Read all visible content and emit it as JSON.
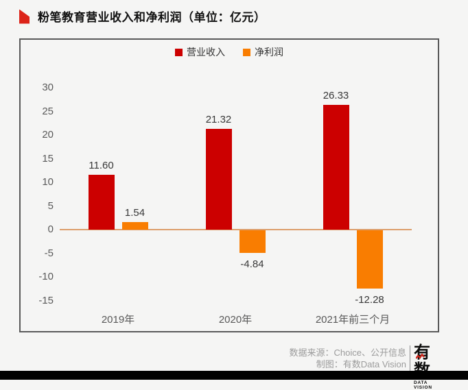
{
  "header": {
    "title": "粉笔教育营业收入和净利润（单位：亿元）"
  },
  "chart_data": {
    "type": "bar",
    "title": "粉笔教育营业收入和净利润（单位：亿元）",
    "unit": "亿元",
    "categories": [
      "2019年",
      "2020年",
      "2021年前三个月"
    ],
    "series": [
      {
        "name": "营业收入",
        "color": "#cc0000",
        "values": [
          11.6,
          21.32,
          26.33
        ]
      },
      {
        "name": "净利润",
        "color": "#f97d01",
        "values": [
          1.54,
          -4.84,
          -12.28
        ]
      }
    ],
    "ylim": [
      -15,
      30
    ],
    "yticks": [
      30,
      25,
      20,
      15,
      10,
      5,
      0,
      -5,
      -10,
      -15
    ],
    "grid": false,
    "legend_position": "top-center",
    "zero_line_color": "#dd9e6b"
  },
  "footer": {
    "source": "数据来源：Choice、公开信息",
    "credit": "制图：有数Data Vision",
    "logo": {
      "text": "有数",
      "subtext": "DATA VISION"
    }
  }
}
